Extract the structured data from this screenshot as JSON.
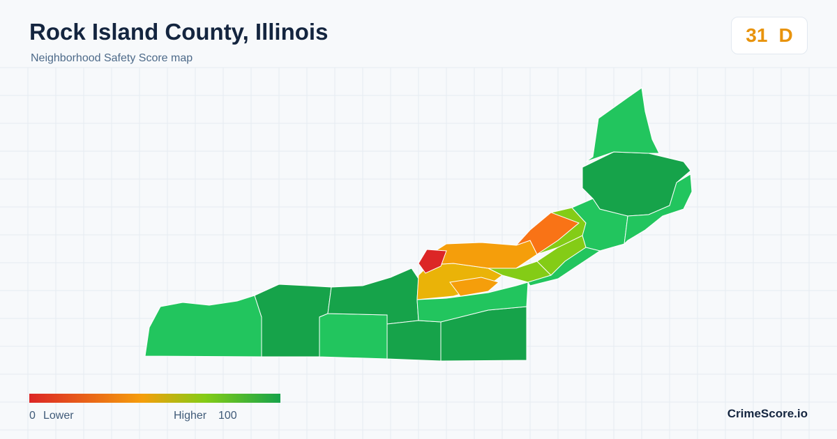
{
  "header": {
    "title": "Rock Island County, Illinois",
    "subtitle": "Neighborhood Safety Score map"
  },
  "score": {
    "value": 31,
    "grade": "D"
  },
  "legend": {
    "min": 0,
    "min_label": "Lower",
    "max_label": "Higher",
    "max": 100
  },
  "brand": "CrimeScore.io"
}
